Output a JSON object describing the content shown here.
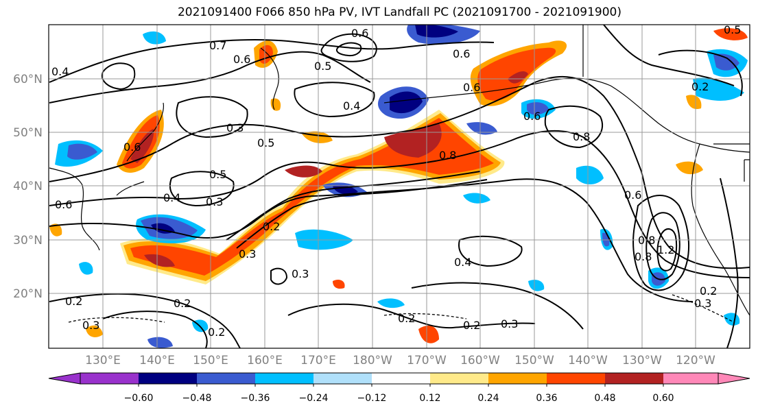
{
  "title": "2021091400 F066 850 hPa PV, IVT Landfall PC (2021091700 - 2021091900)",
  "map": {
    "lat_labels": [
      "60°N",
      "50°N",
      "40°N",
      "30°N",
      "20°N"
    ],
    "lon_labels": [
      "130°E",
      "140°E",
      "150°E",
      "160°E",
      "170°E",
      "180°W",
      "170°W",
      "160°W",
      "150°W",
      "140°W",
      "130°W",
      "120°W"
    ],
    "contour_labels": [
      "0.6",
      "0.7",
      "0.5",
      "0.6",
      "0.4",
      "0.4",
      "0.6",
      "0.6",
      "0.5",
      "0.2",
      "0.6",
      "0.8",
      "0.5",
      "0.3",
      "0.4",
      "0.3",
      "0.8",
      "0.2",
      "0.5",
      "0.6",
      "0.3",
      "0.3",
      "0.8",
      "0.4",
      "0.2",
      "0.2",
      "0.2",
      "0.3",
      "0.3",
      "0.2",
      "0.6",
      "1.2",
      "0.8",
      "0.2",
      "0.3",
      "0.2",
      "0.6"
    ],
    "colors": {
      "neg_060": "#9932cc",
      "neg_048": "#000080",
      "neg_036": "#3a5bd0",
      "neg_024": "#00bfff",
      "neg_012": "#b0e0fa",
      "zero": "#ffffff",
      "pos_012": "#ffea8a",
      "pos_024": "#ffa500",
      "pos_036": "#ff4500",
      "pos_048": "#b22222",
      "pos_060": "#ff88b8"
    }
  },
  "colorbar": {
    "ticks": [
      "−0.60",
      "−0.48",
      "−0.36",
      "−0.24",
      "−0.12",
      "0.12",
      "0.24",
      "0.36",
      "0.48",
      "0.60"
    ],
    "colors": [
      "#9932cc",
      "#000080",
      "#3a5bd0",
      "#00bfff",
      "#b0e0fa",
      "#ffffff",
      "#ffea8a",
      "#ffa500",
      "#ff4500",
      "#b22222",
      "#ff88b8"
    ]
  }
}
